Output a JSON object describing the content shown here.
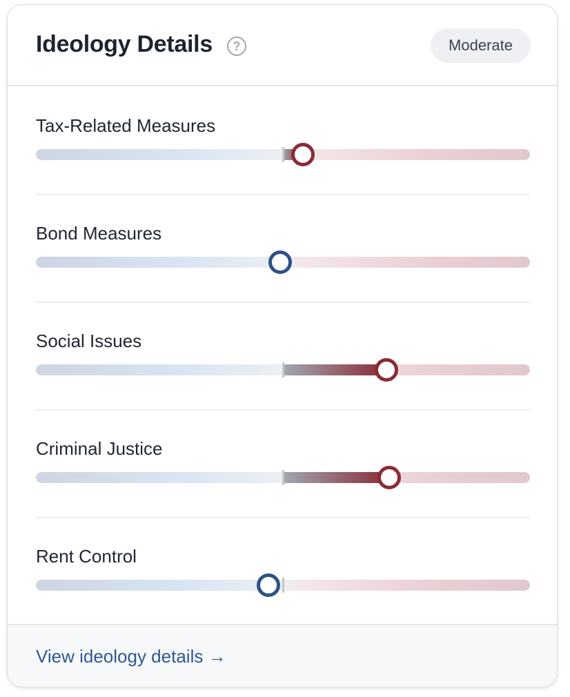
{
  "header": {
    "title": "Ideology Details",
    "help_icon": "?",
    "badge": "Moderate"
  },
  "measures": [
    {
      "label": "Tax-Related Measures",
      "position": 0.54,
      "side": "right"
    },
    {
      "label": "Bond Measures",
      "position": 0.495,
      "side": "left"
    },
    {
      "label": "Social Issues",
      "position": 0.71,
      "side": "right"
    },
    {
      "label": "Criminal Justice",
      "position": 0.715,
      "side": "right"
    },
    {
      "label": "Rent Control",
      "position": 0.47,
      "side": "left"
    }
  ],
  "colors": {
    "conservative": "#8b2a35",
    "liberal": "#2c5288",
    "link": "#2d5a92"
  },
  "footer": {
    "link_label": "View ideology details →"
  }
}
